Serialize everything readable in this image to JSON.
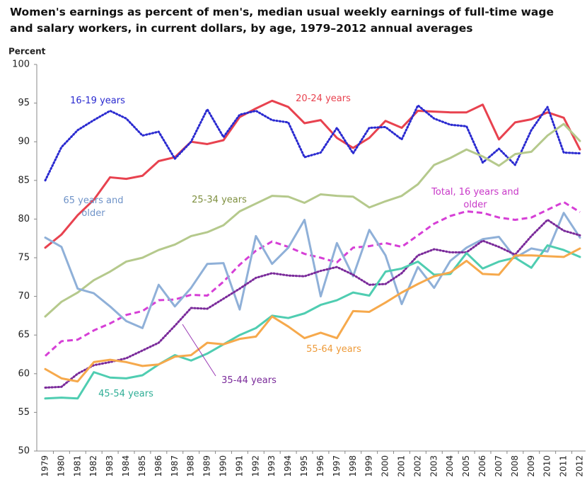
{
  "chart_data": {
    "type": "line",
    "title": "Women's earnings as percent of men's, median usual weekly earnings of full-time wage and salary workers, in current dollars, by age, 1979–2012 annual averages",
    "y_label": "Percent",
    "categories": [
      "1979",
      "1980",
      "1981",
      "1982",
      "1983",
      "1984",
      "1985",
      "1986",
      "1987",
      "1988",
      "1989",
      "1990",
      "1991",
      "1992",
      "1993",
      "1994",
      "1995",
      "1996",
      "1997",
      "1998",
      "1999",
      "2000",
      "2001",
      "2002",
      "2003",
      "2004",
      "2005",
      "2006",
      "2007",
      "2008",
      "2009",
      "2010",
      "2011",
      "2012"
    ],
    "ylim": [
      50,
      100
    ],
    "yticks": [
      50,
      55,
      60,
      65,
      70,
      75,
      80,
      85,
      90,
      95,
      100
    ],
    "grid": false,
    "series": [
      {
        "name": "20-24 years",
        "color": "#e8424f",
        "style": "solid",
        "values": [
          76.3,
          78,
          80.5,
          82.5,
          85.4,
          85.2,
          85.6,
          87.5,
          88,
          90,
          89.7,
          90.2,
          93.2,
          94.3,
          95.3,
          94.5,
          92.4,
          92.8,
          90.5,
          89.2,
          90.5,
          92.7,
          91.8,
          94,
          93.9,
          93.8,
          93.8,
          94.8,
          90.3,
          92.5,
          92.9,
          93.8,
          93.1,
          89
        ]
      },
      {
        "name": "16-19 years",
        "color": "#2a2ad0",
        "style": "dotted",
        "values": [
          85,
          89.3,
          91.5,
          92.8,
          94,
          93,
          90.8,
          91.3,
          87.8,
          90,
          94.2,
          90.6,
          93.5,
          94,
          92.8,
          92.5,
          88,
          88.6,
          91.8,
          88.5,
          91.8,
          91.9,
          90.3,
          94.7,
          93,
          92.2,
          92,
          87.3,
          89.1,
          87,
          91.5,
          94.5,
          88.6,
          88.5
        ]
      },
      {
        "name": "25-34 years",
        "color": "#b5c98c",
        "style": "solid",
        "values": [
          67.4,
          69.3,
          70.5,
          72.1,
          73.2,
          74.5,
          75,
          76,
          76.7,
          77.8,
          78.3,
          79.2,
          81,
          82,
          83,
          82.9,
          82.1,
          83.2,
          83,
          82.9,
          81.5,
          82.3,
          83,
          84.5,
          87,
          87.9,
          89,
          88.1,
          86.9,
          88.4,
          88.7,
          90.8,
          92.3,
          90.1
        ]
      },
      {
        "name": "Total, 16 years and older",
        "color": "#d63fd6",
        "style": "dashed",
        "values": [
          62.3,
          64.2,
          64.4,
          65.6,
          66.5,
          67.6,
          68.1,
          69.5,
          69.6,
          70.2,
          70.1,
          71.9,
          74.1,
          75.9,
          77.1,
          76.4,
          75.5,
          75,
          74.4,
          76.3,
          76.5,
          76.9,
          76.4,
          77.9,
          79.4,
          80.4,
          81,
          80.8,
          80.2,
          79.9,
          80.2,
          81.2,
          82.2,
          80.9
        ]
      },
      {
        "name": "65 years and older",
        "color": "#8fb0d8",
        "style": "solid",
        "values": [
          77.6,
          76.4,
          71,
          70.4,
          68.7,
          66.8,
          65.9,
          71.5,
          68.7,
          71.1,
          74.2,
          74.3,
          68.3,
          77.8,
          74.2,
          76.3,
          79.9,
          70,
          76.9,
          72.6,
          78.6,
          75.3,
          69,
          73.8,
          71.1,
          74.6,
          76.3,
          77.4,
          77.7,
          75,
          76.2,
          75.8,
          80.8,
          77.6
        ]
      },
      {
        "name": "35-44 years",
        "color": "#7a2a9a",
        "style": "dotted",
        "values": [
          58.2,
          58.3,
          60,
          61.1,
          61.5,
          62,
          63,
          64,
          66.2,
          68.5,
          68.4,
          69.7,
          71,
          72.4,
          73,
          72.7,
          72.6,
          73.3,
          73.8,
          72.8,
          71.5,
          71.6,
          73,
          75.3,
          76.1,
          75.7,
          75.7,
          77.2,
          76.4,
          75.4,
          77.8,
          79.9,
          78.5,
          77.9
        ]
      },
      {
        "name": "45-54 years",
        "color": "#4fcdb1",
        "style": "solid",
        "values": [
          56.8,
          56.9,
          56.8,
          60.2,
          59.5,
          59.4,
          59.8,
          61.2,
          62.4,
          61.7,
          62.6,
          63.8,
          65,
          65.9,
          67.5,
          67.2,
          67.8,
          68.9,
          69.5,
          70.5,
          70.1,
          73.2,
          73.6,
          74.5,
          72.8,
          72.9,
          75.6,
          73.6,
          74.5,
          75,
          73.7,
          76.6,
          76,
          75.1
        ]
      },
      {
        "name": "55-64 years",
        "color": "#f6a94c",
        "style": "solid",
        "values": [
          60.6,
          59.4,
          59,
          61.5,
          61.8,
          61.5,
          61,
          61.2,
          62.2,
          62.4,
          64,
          63.8,
          64.5,
          64.8,
          67.4,
          66.1,
          64.6,
          65.3,
          64.6,
          68.1,
          68,
          69.2,
          70.5,
          71.6,
          72.6,
          73.1,
          74.6,
          72.9,
          72.8,
          75.3,
          75.3,
          75.2,
          75.1,
          76.2
        ]
      }
    ]
  }
}
